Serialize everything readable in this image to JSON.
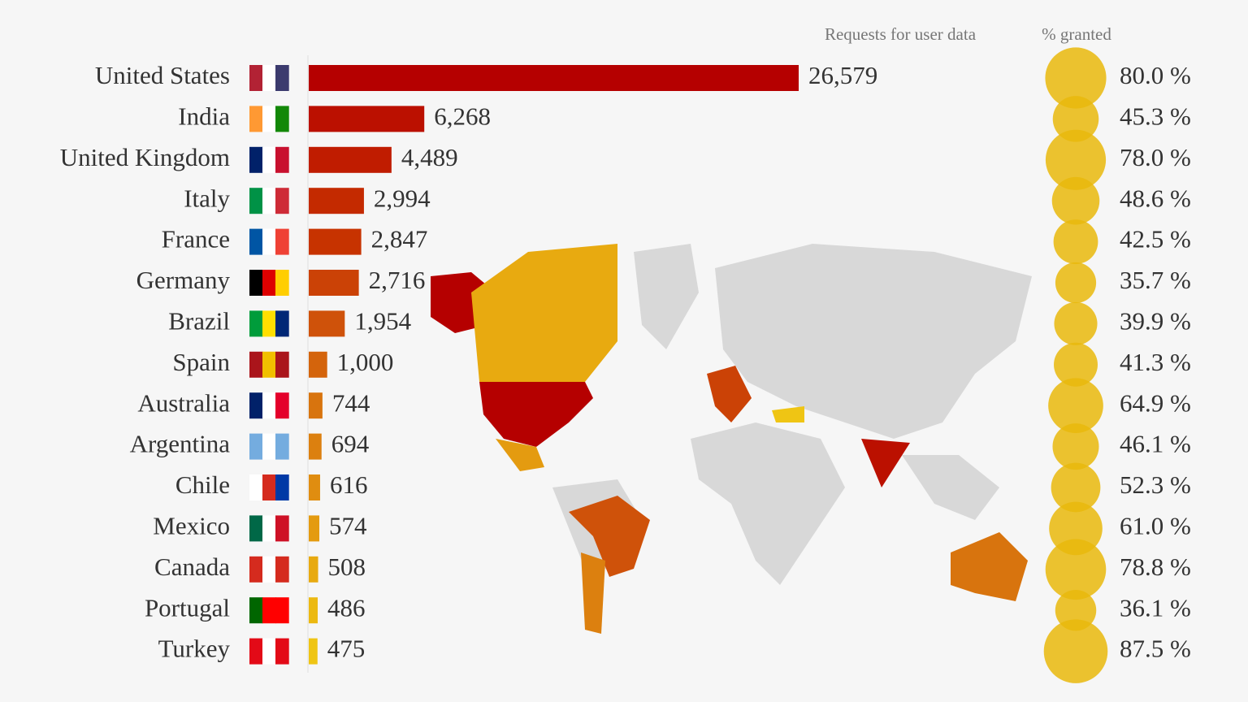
{
  "chart_data": [
    {
      "type": "bar",
      "title": "Requests for user data",
      "categories": [
        "United States",
        "India",
        "United Kingdom",
        "Italy",
        "France",
        "Germany",
        "Brazil",
        "Spain",
        "Australia",
        "Argentina",
        "Chile",
        "Mexico",
        "Canada",
        "Portugal",
        "Turkey"
      ],
      "values": [
        26579,
        6268,
        4489,
        2994,
        2847,
        2716,
        1954,
        1000,
        744,
        694,
        616,
        574,
        508,
        486,
        475
      ],
      "value_labels": [
        "26,579",
        "6,268",
        "4,489",
        "2,994",
        "2,847",
        "2,716",
        "1,954",
        "1,000",
        "744",
        "694",
        "616",
        "574",
        "508",
        "486",
        "475"
      ],
      "colors": [
        "#b50000",
        "#bb1000",
        "#c01c00",
        "#c42a00",
        "#c73300",
        "#cb4206",
        "#cf520a",
        "#d4640c",
        "#d8740e",
        "#dc800f",
        "#e08d10",
        "#e49b10",
        "#e8aa10",
        "#ecb912",
        "#efc514"
      ]
    },
    {
      "type": "bubble",
      "title": "% granted",
      "values": [
        80.0,
        45.3,
        78.0,
        48.6,
        42.5,
        35.7,
        39.9,
        41.3,
        64.9,
        46.1,
        52.3,
        61.0,
        78.8,
        36.1,
        87.5
      ],
      "value_labels": [
        "80.0 %",
        "45.3 %",
        "78.0 %",
        "48.6 %",
        "42.5 %",
        "35.7 %",
        "39.9 %",
        "41.3 %",
        "64.9 %",
        "46.1 %",
        "52.3 %",
        "61.0 %",
        "78.8 %",
        "36.1 %",
        "87.5 %"
      ],
      "color": "#e9b90c"
    }
  ]
}
